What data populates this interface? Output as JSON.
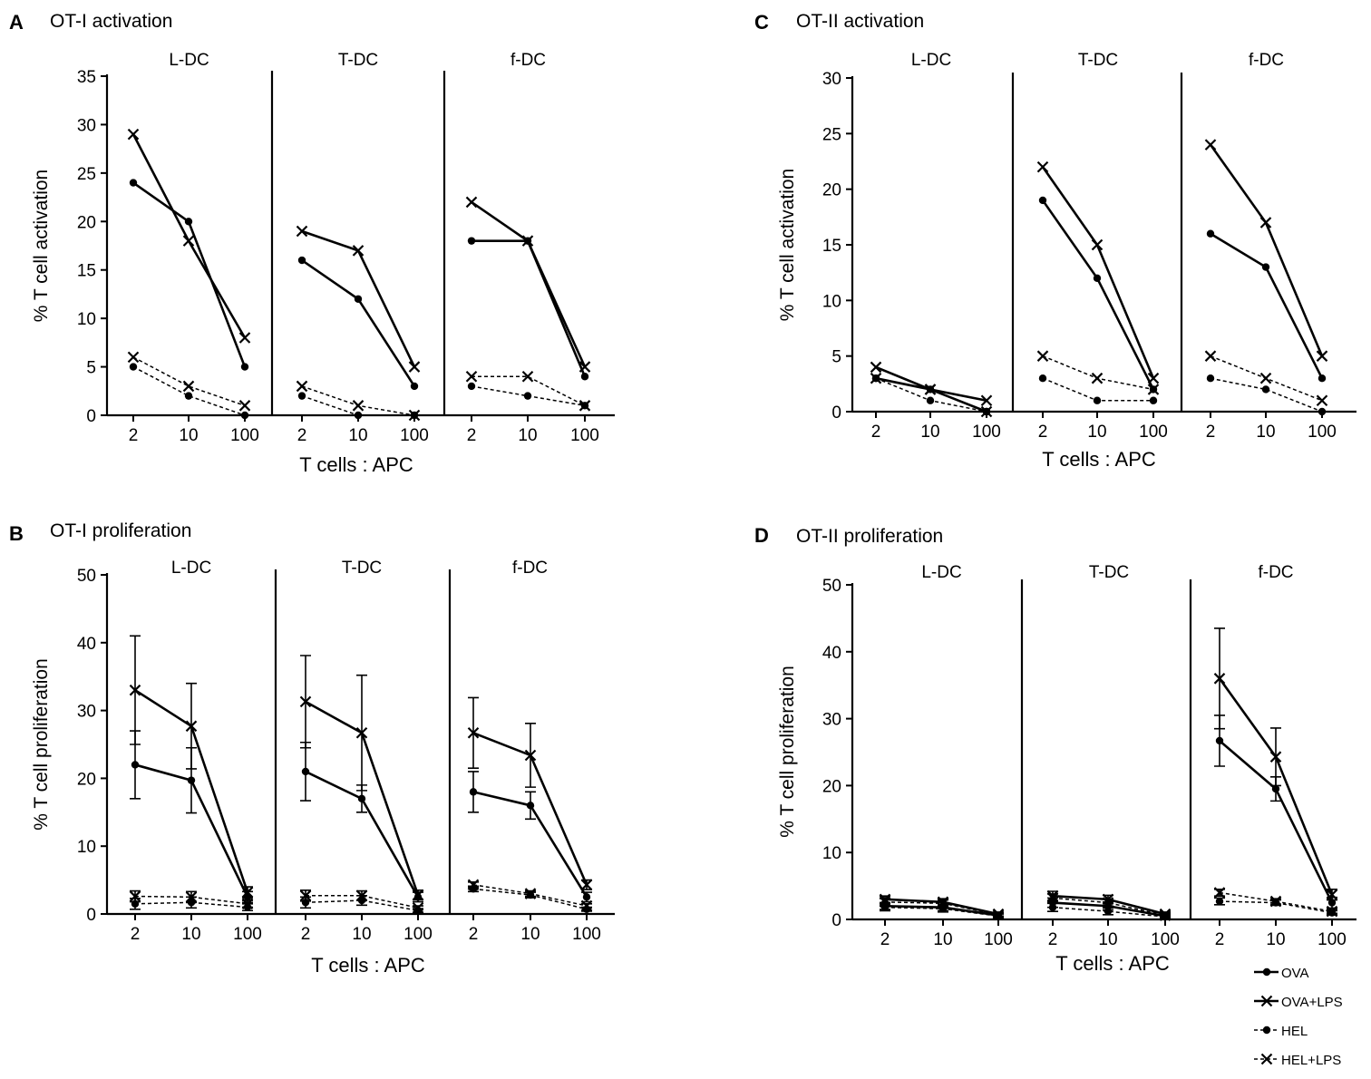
{
  "figure": {
    "legend": [
      {
        "key": "OVA",
        "label": "OVA",
        "marker": "dot",
        "dash": false
      },
      {
        "key": "OVA+LPS",
        "label": "OVA+LPS",
        "marker": "cross",
        "dash": false
      },
      {
        "key": "HEL",
        "label": "HEL",
        "marker": "dot",
        "dash": true
      },
      {
        "key": "HEL+LPS",
        "label": "HEL+LPS",
        "marker": "cross",
        "dash": true
      }
    ]
  },
  "chart_data": [
    {
      "id": "A",
      "panel_letter": "A",
      "title": "OT-I activation",
      "type": "line",
      "ylabel": "% T cell activation",
      "xlabel": "T cells : APC",
      "ylim": [
        0,
        35
      ],
      "yticks": [
        0,
        5,
        10,
        15,
        20,
        25,
        30,
        35
      ],
      "x_ticks": [
        "2",
        "10",
        "100"
      ],
      "subpanels": [
        {
          "name": "L-DC",
          "series": [
            {
              "name": "OVA",
              "values": [
                24,
                20,
                5
              ]
            },
            {
              "name": "OVA+LPS",
              "values": [
                29,
                18,
                8
              ]
            },
            {
              "name": "HEL",
              "values": [
                5,
                2,
                0
              ]
            },
            {
              "name": "HEL+LPS",
              "values": [
                6,
                3,
                1
              ]
            }
          ]
        },
        {
          "name": "T-DC",
          "series": [
            {
              "name": "OVA",
              "values": [
                16,
                12,
                3
              ]
            },
            {
              "name": "OVA+LPS",
              "values": [
                19,
                17,
                5
              ]
            },
            {
              "name": "HEL",
              "values": [
                2,
                0,
                0
              ]
            },
            {
              "name": "HEL+LPS",
              "values": [
                3,
                1,
                0
              ]
            }
          ]
        },
        {
          "name": "f-DC",
          "series": [
            {
              "name": "OVA",
              "values": [
                18,
                18,
                4
              ]
            },
            {
              "name": "OVA+LPS",
              "values": [
                22,
                18,
                5
              ]
            },
            {
              "name": "HEL",
              "values": [
                3,
                2,
                1
              ]
            },
            {
              "name": "HEL+LPS",
              "values": [
                4,
                4,
                1
              ]
            }
          ]
        }
      ]
    },
    {
      "id": "B",
      "panel_letter": "B",
      "title": "OT-I proliferation",
      "type": "line",
      "ylabel": "% T cell proliferation",
      "xlabel": "T cells : APC",
      "ylim": [
        0,
        50
      ],
      "yticks": [
        0,
        10,
        20,
        30,
        40,
        50
      ],
      "x_ticks": [
        "2",
        "10",
        "100"
      ],
      "subpanels": [
        {
          "name": "L-DC",
          "series": [
            {
              "name": "OVA",
              "values": [
                22,
                19.7,
                2.5
              ],
              "errors": [
                5,
                4.8,
                0.8
              ]
            },
            {
              "name": "OVA+LPS",
              "values": [
                33,
                27.7,
                3.2
              ],
              "errors": [
                8,
                6.3,
                0.8
              ]
            },
            {
              "name": "HEL",
              "values": [
                1.5,
                1.7,
                1
              ],
              "errors": [
                0.8,
                0.8,
                0.5
              ]
            },
            {
              "name": "HEL+LPS",
              "values": [
                2.6,
                2.5,
                1.5
              ],
              "errors": [
                0.8,
                0.8,
                0.5
              ]
            }
          ]
        },
        {
          "name": "T-DC",
          "series": [
            {
              "name": "OVA",
              "values": [
                21,
                17,
                2.5
              ],
              "errors": [
                4.3,
                2,
                0.7
              ]
            },
            {
              "name": "OVA+LPS",
              "values": [
                31.3,
                26.7,
                2.8
              ],
              "errors": [
                6.8,
                8.5,
                0.7
              ]
            },
            {
              "name": "HEL",
              "values": [
                1.7,
                2,
                0.5
              ],
              "errors": [
                0.8,
                0.7,
                0.3
              ]
            },
            {
              "name": "HEL+LPS",
              "values": [
                2.7,
                2.7,
                0.9
              ],
              "errors": [
                0.8,
                0.7,
                0.3
              ]
            }
          ]
        },
        {
          "name": "f-DC",
          "series": [
            {
              "name": "OVA",
              "values": [
                18,
                16,
                2.5
              ],
              "errors": [
                3,
                2,
                0.7
              ]
            },
            {
              "name": "OVA+LPS",
              "values": [
                26.7,
                23.4,
                4.3
              ],
              "errors": [
                5.2,
                4.7,
                0.7
              ]
            },
            {
              "name": "HEL",
              "values": [
                3.7,
                2.8,
                0.7
              ],
              "errors": [
                0.4,
                0.4,
                0.3
              ]
            },
            {
              "name": "HEL+LPS",
              "values": [
                4.3,
                3,
                1.2
              ],
              "errors": [
                0.4,
                0.4,
                0.3
              ]
            }
          ]
        }
      ]
    },
    {
      "id": "C",
      "panel_letter": "C",
      "title": "OT-II activation",
      "type": "line",
      "ylabel": "% T cell activation",
      "xlabel": "T cells : APC",
      "ylim": [
        0,
        30
      ],
      "yticks": [
        0,
        5,
        10,
        15,
        20,
        25,
        30
      ],
      "x_ticks": [
        "2",
        "10",
        "100"
      ],
      "subpanels": [
        {
          "name": "L-DC",
          "series": [
            {
              "name": "OVA",
              "values": [
                3,
                2,
                0
              ]
            },
            {
              "name": "OVA+LPS",
              "values": [
                4,
                2,
                1
              ]
            },
            {
              "name": "HEL",
              "values": [
                3,
                1,
                0
              ]
            },
            {
              "name": "HEL+LPS",
              "values": [
                3,
                2,
                0
              ]
            }
          ]
        },
        {
          "name": "T-DC",
          "series": [
            {
              "name": "OVA",
              "values": [
                19,
                12,
                2
              ]
            },
            {
              "name": "OVA+LPS",
              "values": [
                22,
                15,
                3
              ]
            },
            {
              "name": "HEL",
              "values": [
                3,
                1,
                1
              ]
            },
            {
              "name": "HEL+LPS",
              "values": [
                5,
                3,
                2
              ]
            }
          ]
        },
        {
          "name": "f-DC",
          "series": [
            {
              "name": "OVA",
              "values": [
                16,
                13,
                3
              ]
            },
            {
              "name": "OVA+LPS",
              "values": [
                24,
                17,
                5
              ]
            },
            {
              "name": "HEL",
              "values": [
                3,
                2,
                0
              ]
            },
            {
              "name": "HEL+LPS",
              "values": [
                5,
                3,
                1
              ]
            }
          ]
        }
      ]
    },
    {
      "id": "D",
      "panel_letter": "D",
      "title": "OT-II proliferation",
      "type": "line",
      "ylabel": "% T cell proliferation",
      "xlabel": "T cells : APC",
      "ylim": [
        0,
        50
      ],
      "yticks": [
        0,
        10,
        20,
        30,
        40,
        50
      ],
      "x_ticks": [
        "2",
        "10",
        "100"
      ],
      "subpanels": [
        {
          "name": "L-DC",
          "series": [
            {
              "name": "OVA",
              "values": [
                2,
                1.8,
                0.6
              ],
              "errors": [
                0.5,
                0.5,
                0.3
              ]
            },
            {
              "name": "OVA+LPS",
              "values": [
                3,
                2.6,
                0.8
              ],
              "errors": [
                0.5,
                0.5,
                0.3
              ]
            },
            {
              "name": "HEL",
              "values": [
                1.8,
                1.6,
                0.5
              ],
              "errors": [
                0.5,
                0.5,
                0.3
              ]
            },
            {
              "name": "HEL+LPS",
              "values": [
                2.6,
                2.4,
                0.7
              ],
              "errors": [
                0.5,
                0.5,
                0.3
              ]
            }
          ]
        },
        {
          "name": "T-DC",
          "series": [
            {
              "name": "OVA",
              "values": [
                2.5,
                2,
                0.5
              ],
              "errors": [
                0.7,
                0.6,
                0.3
              ]
            },
            {
              "name": "OVA+LPS",
              "values": [
                3.5,
                3,
                0.8
              ],
              "errors": [
                0.7,
                0.6,
                0.3
              ]
            },
            {
              "name": "HEL",
              "values": [
                1.8,
                1.2,
                0.4
              ],
              "errors": [
                0.6,
                0.5,
                0.3
              ]
            },
            {
              "name": "HEL+LPS",
              "values": [
                3.2,
                2.5,
                0.6
              ],
              "errors": [
                0.6,
                0.5,
                0.3
              ]
            }
          ]
        },
        {
          "name": "f-DC",
          "series": [
            {
              "name": "OVA",
              "values": [
                26.7,
                19.5,
                2.5
              ],
              "errors": [
                3.8,
                1.8,
                0.8
              ]
            },
            {
              "name": "OVA+LPS",
              "values": [
                36,
                24.3,
                3.7
              ],
              "errors": [
                7.5,
                4.3,
                0.8
              ]
            },
            {
              "name": "HEL",
              "values": [
                2.7,
                2.5,
                1
              ],
              "errors": [
                0.5,
                0.4,
                0.3
              ]
            },
            {
              "name": "HEL+LPS",
              "values": [
                4,
                2.7,
                1.2
              ],
              "errors": [
                0.5,
                0.4,
                0.3
              ]
            }
          ]
        }
      ]
    }
  ]
}
